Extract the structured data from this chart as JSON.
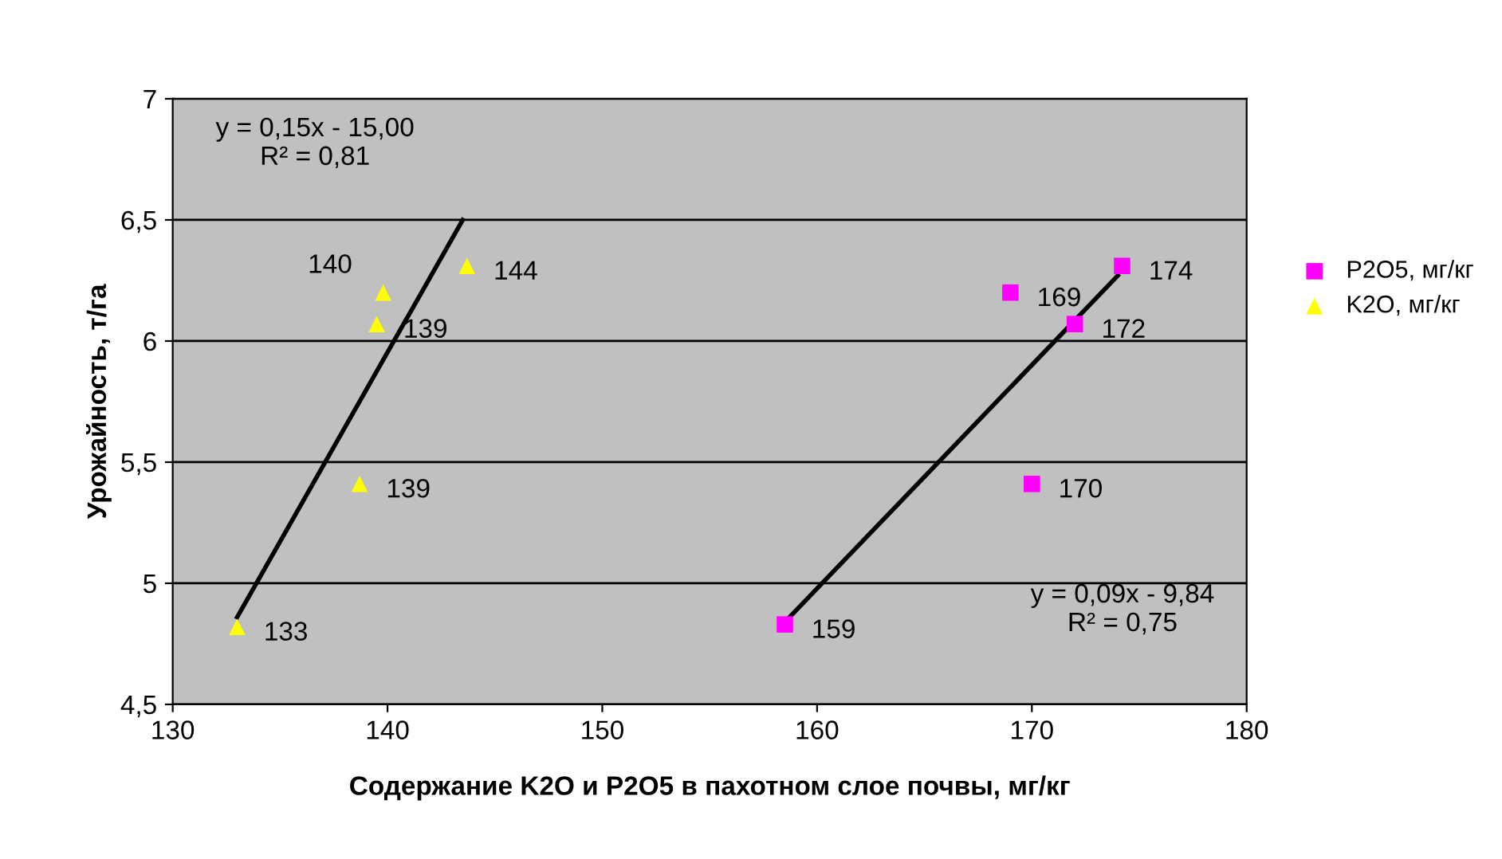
{
  "chart_data": {
    "type": "scatter",
    "xlabel": "Содержание K2O и P2O5 в пахотном слое почвы, мг/кг",
    "ylabel": "Урожайность, т/га",
    "series": [
      {
        "name": "P2O5, мг/кг",
        "color": "#ff00ff",
        "marker": "square",
        "x": [
          158.5,
          170,
          172,
          169,
          174.2
        ],
        "values": [
          4.83,
          5.41,
          6.07,
          6.2,
          6.31
        ]
      },
      {
        "name": "K2O, мг/кг",
        "color": "#ffff00",
        "marker": "triangle",
        "x": [
          133,
          138.7,
          139.5,
          139.8,
          143.7
        ],
        "values": [
          4.82,
          5.41,
          6.07,
          6.2,
          6.31
        ]
      },
      {
        "type": "line",
        "color": "#000000",
        "x": [
          133,
          143.5
        ],
        "values": [
          4.86,
          6.5
        ]
      },
      {
        "type": "line",
        "color": "#000000",
        "x": [
          158.5,
          174
        ],
        "values": [
          4.84,
          6.27
        ]
      }
    ],
    "annotations": [
      "y = 0,15x - 15,00\nR² = 0,81",
      "y = 0,09x - 9,84\nR² = 0,75",
      {
        "text": "159",
        "x": 158.5,
        "y": 4.83
      },
      {
        "text": "170",
        "x": 170,
        "y": 5.41
      },
      {
        "text": "172",
        "x": 172,
        "y": 6.07
      },
      {
        "text": "169",
        "x": 169,
        "y": 6.2
      },
      {
        "text": "174",
        "x": 174.2,
        "y": 6.31
      },
      {
        "text": "133",
        "x": 133,
        "y": 4.82
      },
      {
        "text": "139",
        "x": 138.7,
        "y": 5.41
      },
      {
        "text": "139",
        "x": 139.5,
        "y": 6.07
      },
      {
        "text": "140",
        "x": 139.8,
        "y": 6.2
      },
      {
        "text": "144",
        "x": 143.7,
        "y": 6.31
      }
    ],
    "xlim": [
      130,
      180
    ],
    "xticks": [
      130,
      140,
      150,
      160,
      170,
      180
    ],
    "ylim": [
      4.5,
      7
    ],
    "yticks": [
      {
        "value": 4.5,
        "label": "4,5"
      },
      5,
      {
        "value": 5.5,
        "label": "5,5"
      },
      6,
      {
        "value": 6.5,
        "label": "6,5"
      },
      7
    ],
    "grid": "y",
    "legend": "right"
  }
}
